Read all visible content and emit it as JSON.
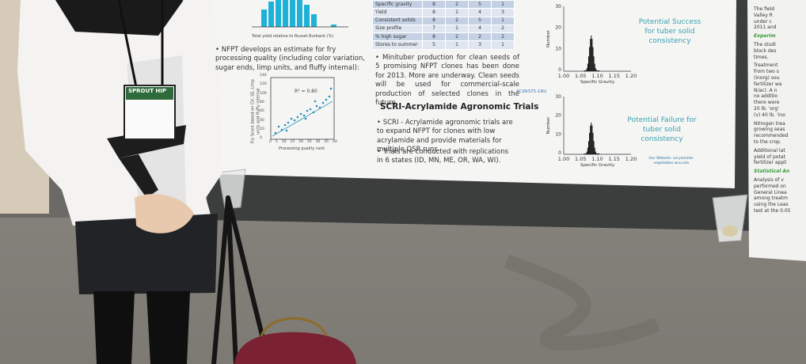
{
  "badge": "SPROUT HIP",
  "poster": {
    "bar_chart_xlabel": "Total yield relative to Russet Burbank (%)",
    "fry_bullet": "• NFPT develops an estimate for fry processing quality (including color variation, sugar ends, limp units, and fluffy internal):",
    "scatter": {
      "r2": "R² = 0.80",
      "xlabel": "Processing quality rank",
      "ylabel": "Fry Score based on CV, SE, Limp units and fluffy internal",
      "xticks": [
        "0",
        "5",
        "10",
        "15",
        "20",
        "25",
        "30",
        "35",
        "40"
      ],
      "yticks": [
        "140",
        "120",
        "100",
        "80",
        "60",
        "40",
        "20",
        "0"
      ]
    },
    "table": [
      [
        "Specific gravity",
        "8",
        "2",
        "5",
        "1"
      ],
      [
        "Yield",
        "8",
        "1",
        "4",
        "3"
      ],
      [
        "Consistent solids",
        "8",
        "2",
        "5",
        "1"
      ],
      [
        "Size profile",
        "7",
        "1",
        "4",
        "2"
      ],
      [
        "% high sugar",
        "8",
        "2",
        "2",
        "2"
      ],
      [
        "Stores to summer",
        "5",
        "1",
        "3",
        "1"
      ]
    ],
    "minituber": "• Minituber production for clean seeds of 5 promising NFPT clones has been done for 2013. More are underway. Clean seeds will be used for commercial-scale production of selected clones in the future.",
    "scri_title": "SCRI-Acrylamide Agronomic Trials",
    "scri_bullets": [
      "• SCRI - Acrylamide agronomic trials are to expand NFPT for clones with low acrylamide and provide materials for multiple QSR runs.",
      "• Trials are conducted with replications in 6 states (ID, MN, ME, OR, WA, WI)."
    ],
    "histograms": [
      {
        "note": "Potential Success for tuber solid consistency"
      },
      {
        "clone": "AC99375-1RU",
        "note": "Potential Failure for tuber solid consistency"
      }
    ],
    "hist_xlabel": "Specific Gravity",
    "hist_ylabel": "Number",
    "hist_xticks": [
      "1.00",
      "1.05",
      "1.10",
      "1.15",
      "1.20"
    ],
    "hist_yticks": [
      "30",
      "20",
      "10",
      "0"
    ],
    "website": "Our Website: acrylamide-vegetables.wsu.edu"
  },
  "right_poster": [
    "The field",
    "Valley R",
    "under c",
    "2011 and",
    "Experim",
    "The studi",
    "block des",
    "times.",
    "Treatment",
    "from two s",
    "(inorg) sou",
    "fertilizer wa",
    "N/ac). A n",
    "no additio",
    "there were",
    "20 lb. 'org'",
    "(v) 40 lb. 'ino",
    "Nitrogen trea",
    "growing seas",
    "recommended",
    "to the crop.",
    "Additional lat",
    "yield of potat",
    "fertilizer appli",
    "Statistical An",
    "Analysis of v",
    "performed on",
    "General Linea",
    "among treatm",
    "using the Leas",
    "test at the 0.05"
  ]
}
